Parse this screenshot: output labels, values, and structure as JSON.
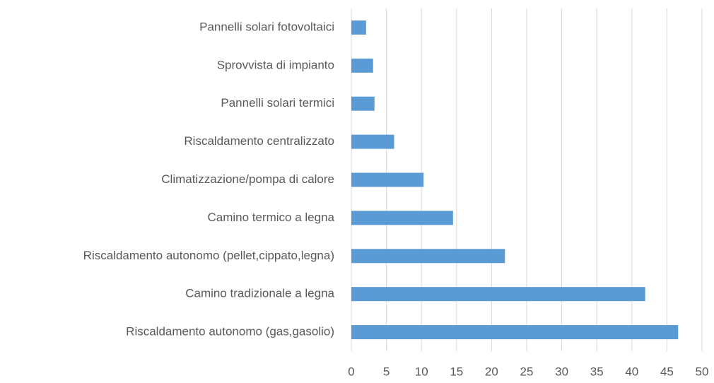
{
  "chart_data": {
    "type": "barh",
    "categories": [
      "Pannelli solari fotovoltaici",
      "Sprovvista di impianto",
      "Pannelli solari termici",
      "Riscaldamento centralizzato",
      "Climatizzazione/pompa di calore",
      "Camino termico a legna",
      "Riscaldamento autonomo (pellet,cippato,legna)",
      "Camino tradizionale a legna",
      "Riscaldamento autonomo (gas,gasolio)"
    ],
    "values": [
      2.1,
      3.1,
      3.3,
      6.1,
      10.3,
      14.5,
      21.9,
      41.9,
      46.6
    ],
    "color": "#5b9bd5",
    "xlim": [
      0,
      50
    ],
    "xticks": [
      0,
      5,
      10,
      15,
      20,
      25,
      30,
      35,
      40,
      45,
      50
    ],
    "grid": true
  }
}
